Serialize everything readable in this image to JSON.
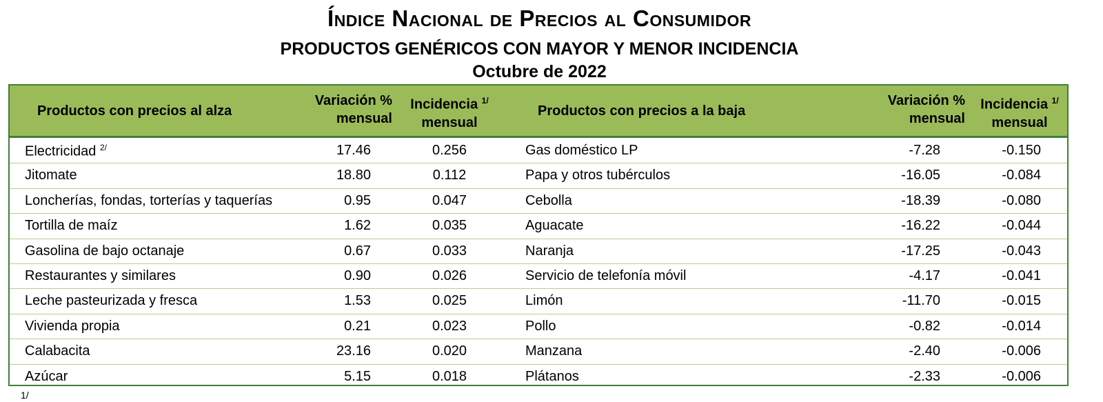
{
  "title": "Índice Nacional de Precios al Consumidor",
  "subtitle": "PRODUCTOS GENÉRICOS CON MAYOR Y MENOR INCIDENCIA",
  "period": "Octubre de 2022",
  "headers": {
    "up_products": "Productos con precios al alza",
    "var1": "Variación %",
    "var2": "mensual",
    "inc1": "Incidencia",
    "inc_note": "1/",
    "inc2": "mensual",
    "down_products": "Productos con precios a la baja"
  },
  "rows": [
    {
      "up": "Electricidad",
      "up_note": "2/",
      "up_var": "17.46",
      "up_inc": "0.256",
      "down": "Gas doméstico LP",
      "down_var": "-7.28",
      "down_inc": "-0.150"
    },
    {
      "up": "Jitomate",
      "up_var": "18.80",
      "up_inc": "0.112",
      "down": "Papa y otros tubérculos",
      "down_var": "-16.05",
      "down_inc": "-0.084"
    },
    {
      "up": "Loncherías, fondas, torterías y taquerías",
      "up_var": "0.95",
      "up_inc": "0.047",
      "down": "Cebolla",
      "down_var": "-18.39",
      "down_inc": "-0.080"
    },
    {
      "up": "Tortilla de maíz",
      "up_var": "1.62",
      "up_inc": "0.035",
      "down": "Aguacate",
      "down_var": "-16.22",
      "down_inc": "-0.044"
    },
    {
      "up": "Gasolina de bajo octanaje",
      "up_var": "0.67",
      "up_inc": "0.033",
      "down": "Naranja",
      "down_var": "-17.25",
      "down_inc": "-0.043"
    },
    {
      "up": "Restaurantes y similares",
      "up_var": "0.90",
      "up_inc": "0.026",
      "down": "Servicio de telefonía móvil",
      "down_var": "-4.17",
      "down_inc": "-0.041"
    },
    {
      "up": "Leche pasteurizada y fresca",
      "up_var": "1.53",
      "up_inc": "0.025",
      "down": "Limón",
      "down_var": "-11.70",
      "down_inc": "-0.015"
    },
    {
      "up": "Vivienda propia",
      "up_var": "0.21",
      "up_inc": "0.023",
      "down": "Pollo",
      "down_var": "-0.82",
      "down_inc": "-0.014"
    },
    {
      "up": "Calabacita",
      "up_var": "23.16",
      "up_inc": "0.020",
      "down": "Manzana",
      "down_var": "-2.40",
      "down_inc": "-0.006"
    },
    {
      "up": "Azúcar",
      "up_var": "5.15",
      "up_inc": "0.018",
      "down": "Plátanos",
      "down_var": "-2.33",
      "down_inc": "-0.006"
    }
  ],
  "footnote": "1/"
}
